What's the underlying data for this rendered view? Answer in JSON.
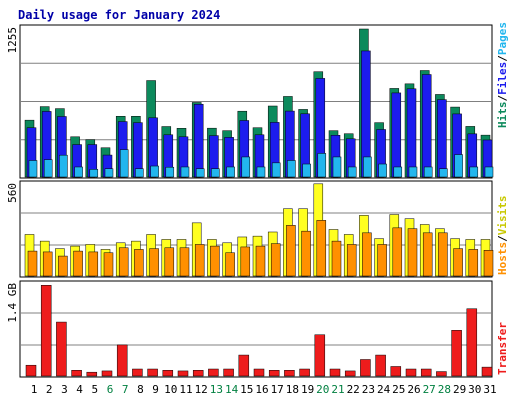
{
  "title": "Daily usage for January 2024",
  "colors": {
    "visits": "#0c8a5c",
    "pages": "#1c1cee",
    "files": "#22b6ee",
    "hosts": "#ff9000",
    "visits2": "#ffff20",
    "transfer": "#ee1c1c",
    "weekend_label": "#008040",
    "weekday_label": "#000000"
  },
  "right_labels": {
    "hits": {
      "text": "Hits",
      "color": "#0c8a5c"
    },
    "files": {
      "text": "Files",
      "color": "#1c1cee"
    },
    "pages": {
      "text": "Pages",
      "color": "#22b6ee"
    },
    "hosts": {
      "text": "Hosts",
      "color": "#ff9000"
    },
    "visits": {
      "text": "Visits",
      "color": "#c8c800"
    },
    "transfer": {
      "text": "Transfer",
      "color": "#ee1c1c"
    }
  },
  "chart_data": [
    {
      "type": "bar",
      "name": "hits-files-pages",
      "ymax_label": "1255",
      "ylim": [
        0,
        1255
      ],
      "categories": [
        "1",
        "2",
        "3",
        "4",
        "5",
        "6",
        "7",
        "8",
        "9",
        "10",
        "11",
        "12",
        "13",
        "14",
        "15",
        "16",
        "17",
        "18",
        "19",
        "20",
        "21",
        "22",
        "23",
        "24",
        "25",
        "26",
        "27",
        "28",
        "29",
        "30",
        "31"
      ],
      "weekend_days": [
        6,
        7,
        13,
        14,
        20,
        21,
        27,
        28
      ],
      "series": [
        {
          "name": "Hits",
          "values": [
            482,
            597,
            580,
            341,
            317,
            248,
            515,
            515,
            818,
            428,
            413,
            632,
            414,
            393,
            558,
            418,
            602,
            683,
            573,
            893,
            393,
            367,
            1255,
            461,
            751,
            790,
            903,
            700,
            593,
            429,
            355
          ]
        },
        {
          "name": "Files",
          "values": [
            418,
            556,
            513,
            275,
            275,
            186,
            470,
            461,
            502,
            358,
            341,
            617,
            351,
            336,
            479,
            358,
            463,
            559,
            536,
            836,
            354,
            324,
            1069,
            403,
            713,
            748,
            869,
            656,
            535,
            366,
            314
          ]
        },
        {
          "name": "Pages",
          "values": [
            140,
            147,
            185,
            85,
            65,
            70,
            232,
            70,
            93,
            83,
            85,
            70,
            70,
            85,
            170,
            85,
            120,
            140,
            110,
            200,
            170,
            85,
            170,
            110,
            85,
            85,
            85,
            70,
            190,
            85,
            85
          ]
        }
      ]
    },
    {
      "type": "bar",
      "name": "hosts-visits",
      "ymax_label": "560",
      "ylim": [
        0,
        560
      ],
      "categories": [
        "1",
        "2",
        "3",
        "4",
        "5",
        "6",
        "7",
        "8",
        "9",
        "10",
        "11",
        "12",
        "13",
        "14",
        "15",
        "16",
        "17",
        "18",
        "19",
        "20",
        "21",
        "22",
        "23",
        "24",
        "25",
        "26",
        "27",
        "28",
        "29",
        "30",
        "31"
      ],
      "series": [
        {
          "name": "Visits",
          "values": [
            250,
            210,
            165,
            180,
            190,
            160,
            200,
            210,
            250,
            220,
            220,
            320,
            220,
            200,
            235,
            240,
            265,
            405,
            405,
            555,
            280,
            250,
            365,
            225,
            370,
            345,
            310,
            285,
            225,
            220,
            220
          ]
        },
        {
          "name": "Hosts",
          "values": [
            150,
            145,
            120,
            150,
            145,
            140,
            170,
            160,
            165,
            170,
            170,
            190,
            180,
            140,
            175,
            180,
            195,
            305,
            270,
            335,
            210,
            190,
            260,
            190,
            290,
            285,
            260,
            260,
            165,
            160,
            155
          ]
        }
      ]
    },
    {
      "type": "bar",
      "name": "transfer",
      "ymax_label": "1.4 GB",
      "ylim": [
        0,
        1.4
      ],
      "categories": [
        "1",
        "2",
        "3",
        "4",
        "5",
        "6",
        "7",
        "8",
        "9",
        "10",
        "11",
        "12",
        "13",
        "14",
        "15",
        "16",
        "17",
        "18",
        "19",
        "20",
        "21",
        "22",
        "23",
        "24",
        "25",
        "26",
        "27",
        "28",
        "29",
        "30",
        "31"
      ],
      "series": [
        {
          "name": "Transfer",
          "values": [
            0.17,
            1.43,
            0.85,
            0.09,
            0.06,
            0.08,
            0.49,
            0.11,
            0.11,
            0.09,
            0.08,
            0.09,
            0.11,
            0.11,
            0.33,
            0.11,
            0.09,
            0.09,
            0.11,
            0.65,
            0.11,
            0.08,
            0.26,
            0.33,
            0.15,
            0.11,
            0.11,
            0.07,
            0.72,
            1.06,
            0.14
          ]
        }
      ]
    }
  ]
}
